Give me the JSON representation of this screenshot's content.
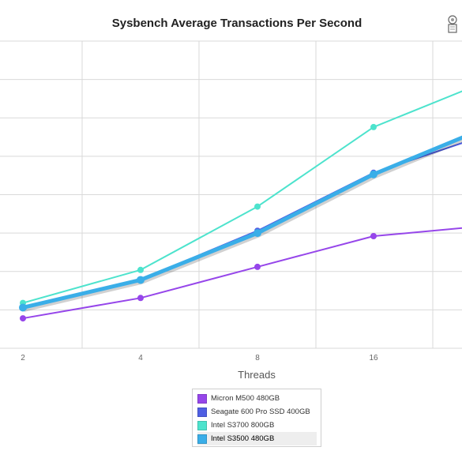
{
  "chart_data": {
    "type": "line",
    "title": "Sysbench Average Transactions Per Second",
    "xlabel": "Threads",
    "ylabel": "",
    "x": [
      "2",
      "4",
      "8",
      "16"
    ],
    "ylim": [
      0,
      8
    ],
    "grid": true,
    "legend_position": "bottom",
    "series": [
      {
        "name": "Micron M500 480GB",
        "color": "#9646ea",
        "values": [
          0.78,
          1.31,
          2.12,
          2.92
        ],
        "last_partial": 3.2
      },
      {
        "name": "Seagate 600 Pro SSD 400GB",
        "color": "#4f5fe3",
        "values": [
          1.06,
          1.79,
          3.06,
          4.57
        ],
        "last_partial": 5.6
      },
      {
        "name": "Intel S3700 800GB",
        "color": "#4de3cd",
        "values": [
          1.18,
          2.04,
          3.69,
          5.76
        ],
        "last_partial": 7.0
      },
      {
        "name": "Intel S3500 480GB",
        "color": "#3aaee8",
        "values": [
          1.06,
          1.78,
          3.0,
          4.53
        ],
        "last_partial": 5.8
      }
    ],
    "active_legend": "Intel S3500 480GB"
  },
  "icons": {
    "corner": "badge-icon"
  }
}
